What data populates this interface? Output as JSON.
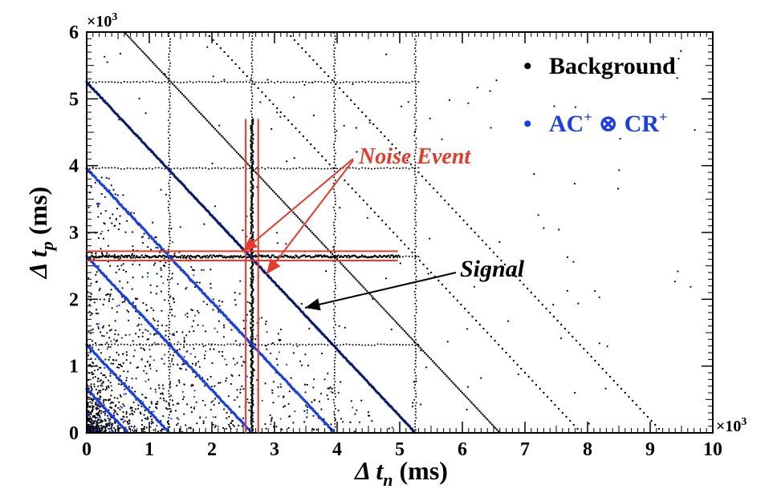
{
  "chart_data": {
    "type": "scatter",
    "xlabel_prefix": "Δ t",
    "xlabel_sub": "n",
    "xlabel_suffix": " (ms)",
    "ylabel_prefix": "Δ t",
    "ylabel_sub": "p",
    "ylabel_suffix": " (ms)",
    "x_multiplier": "×10",
    "x_multiplier_exp": "3",
    "y_multiplier": "×10",
    "y_multiplier_exp": "3",
    "xlim": [
      0,
      10
    ],
    "ylim": [
      0,
      6
    ],
    "x_ticks": [
      "0",
      "1",
      "2",
      "3",
      "4",
      "5",
      "6",
      "7",
      "8",
      "9",
      "10"
    ],
    "y_ticks": [
      "0",
      "1",
      "2",
      "3",
      "4",
      "5",
      "6"
    ],
    "grid": false,
    "legend_position": "top-right",
    "legend": [
      {
        "marker": "•",
        "color": "#000000",
        "label": "Background"
      },
      {
        "marker": "•",
        "color": "#1a3fe6",
        "label_main": "AC",
        "label_sup1": "+",
        "label_op": " ⊗ ",
        "label_main2": "CR",
        "label_sup2": "+"
      }
    ],
    "annotations": {
      "noise_event": {
        "text": "Noise Event",
        "color": "#e8392b"
      },
      "signal": {
        "text": "Signal",
        "color": "#000000"
      }
    },
    "blue_lines": [
      {
        "intercept": 0.66
      },
      {
        "intercept": 1.32
      },
      {
        "intercept": 2.64
      },
      {
        "intercept": 3.96
      },
      {
        "intercept": 5.25
      }
    ],
    "black_lines": [
      {
        "intercept": 5.25
      },
      {
        "intercept": 6.6
      },
      {
        "intercept": 7.9
      },
      {
        "intercept": 9.2
      }
    ],
    "grid_lines_x": [
      1.32,
      2.64,
      3.96,
      5.25
    ],
    "grid_lines_y": [
      1.32,
      2.64,
      3.96,
      5.25
    ],
    "noise_band_x": [
      2.54,
      2.74
    ],
    "noise_band_y": [
      2.58,
      2.72
    ],
    "colors": {
      "background": "#000000",
      "signal": "#1a3fe6",
      "noise": "#e8392b"
    }
  }
}
